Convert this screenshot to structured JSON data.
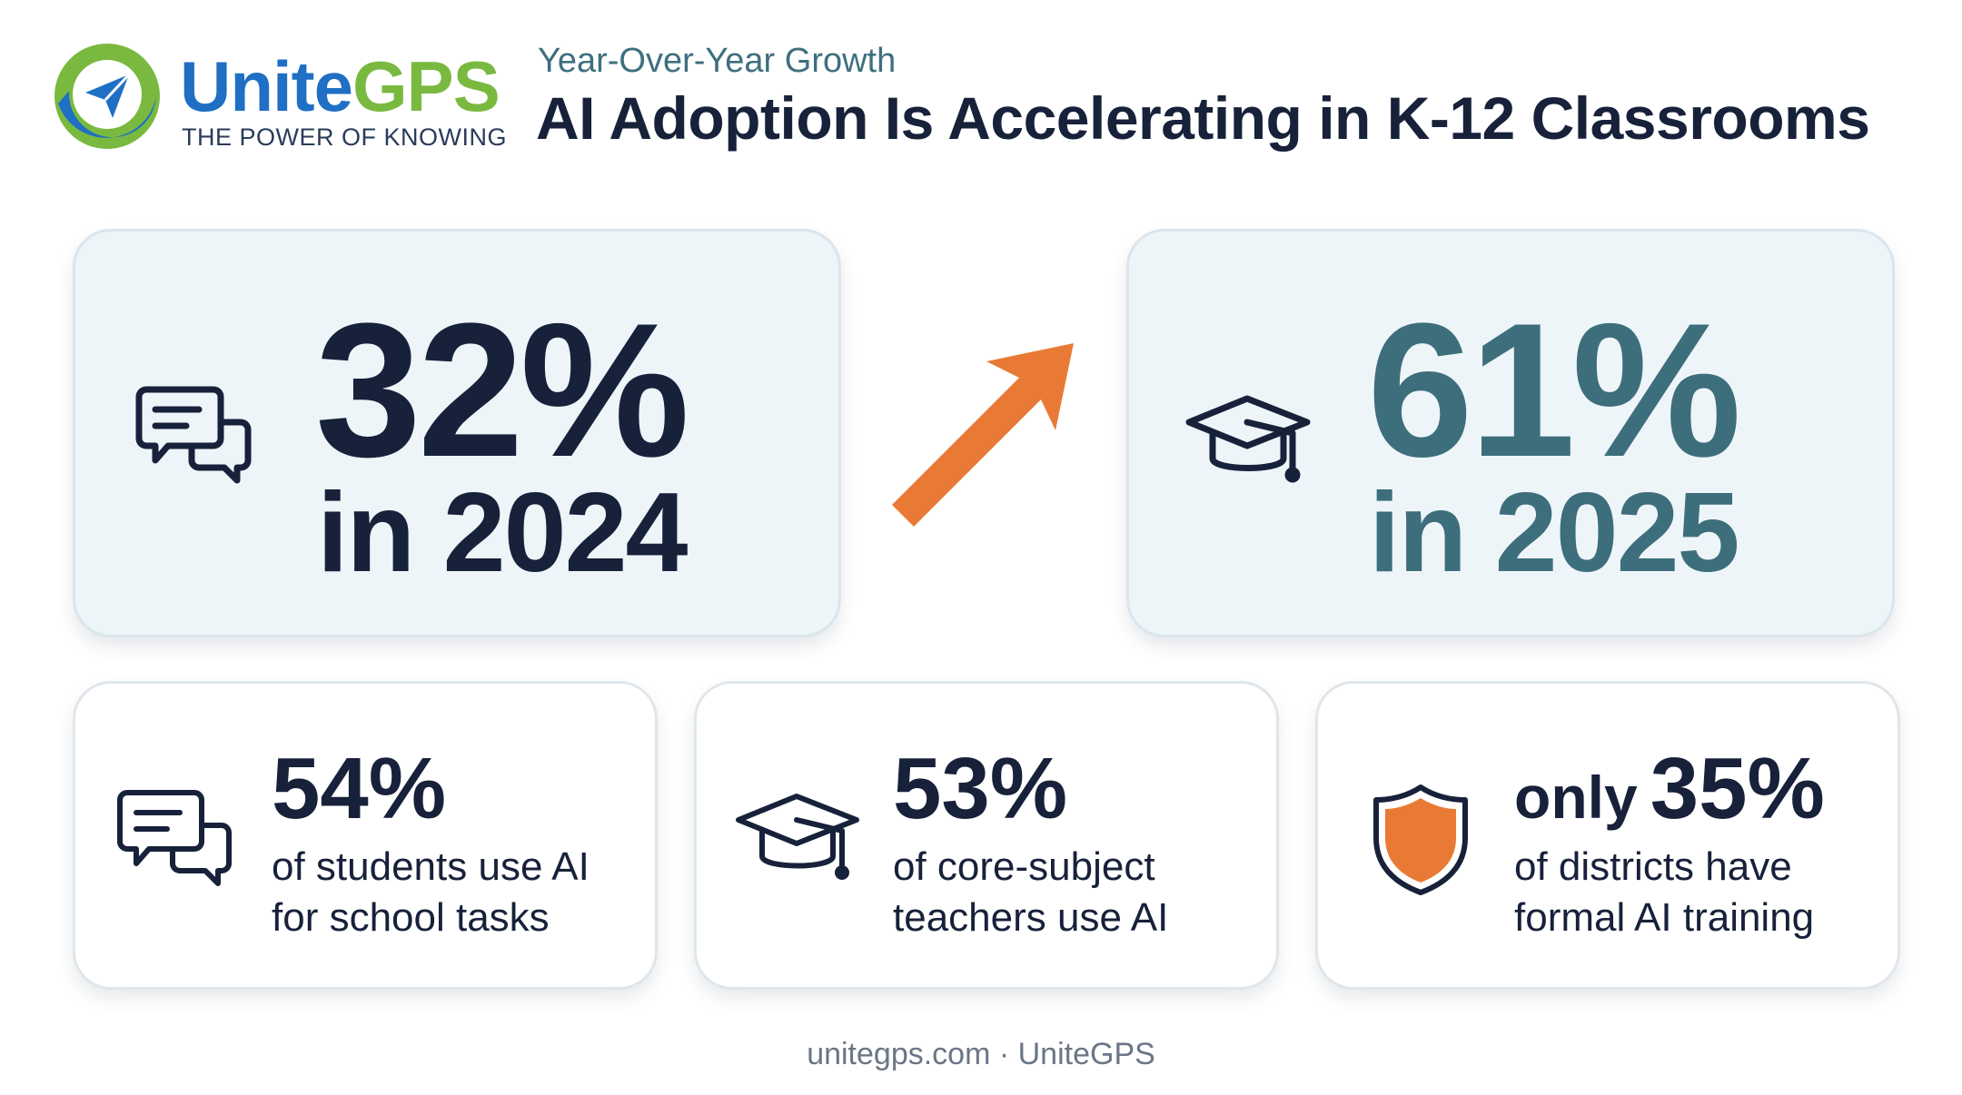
{
  "brand": {
    "name_part1": "Unite",
    "name_part2": "GPS",
    "tagline": "THE POWER OF KNOWING",
    "colors": {
      "blue": "#1f6fc4",
      "green": "#7ab940",
      "orange": "#e97a35",
      "teal": "#3d6e7c",
      "navy": "#17213a"
    }
  },
  "header": {
    "subtitle": "Year-Over-Year Growth",
    "title": "AI Adoption Is Accelerating in K-12 Classrooms"
  },
  "comparison": {
    "before": {
      "icon": "chat-bubbles-icon",
      "value": "32%",
      "label": "in 2024"
    },
    "after": {
      "icon": "graduation-cap-icon",
      "value": "61%",
      "label": "in 2025"
    },
    "trend_icon": "up-right-arrow-icon"
  },
  "stats": [
    {
      "icon": "chat-bubbles-icon",
      "prefix": "",
      "value": "54%",
      "line1": "of students use AI",
      "line2": "for school tasks"
    },
    {
      "icon": "graduation-cap-icon",
      "prefix": "",
      "value": "53%",
      "line1": "of core-subject",
      "line2": "teachers use AI"
    },
    {
      "icon": "shield-icon",
      "prefix": "only",
      "value": "35%",
      "line1": "of districts have",
      "line2": "formal AI training"
    }
  ],
  "footer": {
    "text": "unitegps.com · UniteGPS"
  }
}
